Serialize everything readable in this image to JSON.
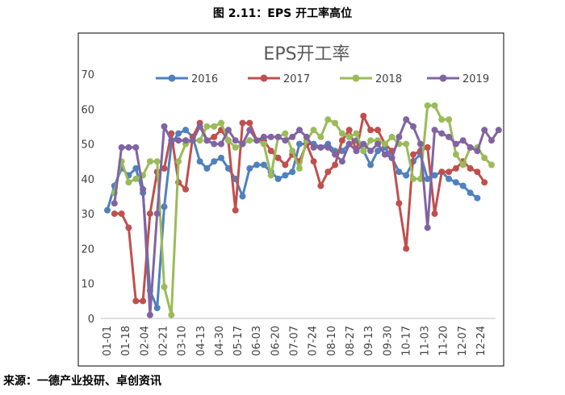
{
  "figure_caption": "图 2.11：EPS 开工率高位",
  "source_note": "来源：一德产业投研、卓创资讯",
  "chart_data": {
    "type": "line",
    "title": "EPS开工率",
    "xlabel": "",
    "ylabel": "",
    "ylim": [
      0,
      70
    ],
    "y_ticks": [
      0,
      10,
      20,
      30,
      40,
      50,
      60,
      70
    ],
    "grid": false,
    "legend_position": "top",
    "x_tick_labels": [
      "01-01",
      "01-18",
      "02-04",
      "02-21",
      "03-10",
      "04-13",
      "04-30",
      "05-17",
      "06-03",
      "06-20",
      "07-07",
      "07-24",
      "08-10",
      "08-27",
      "09-13",
      "09-30",
      "10-17",
      "11-03",
      "11-20",
      "12-07",
      "12-24"
    ],
    "series": [
      {
        "name": "2016",
        "color": "#4F81BD",
        "x_start": 0,
        "values": [
          31,
          38,
          43,
          41,
          43,
          36,
          8,
          3,
          32,
          50,
          53,
          54,
          52,
          45,
          43,
          45,
          46,
          43,
          40,
          35,
          43,
          44,
          44,
          42,
          40,
          41,
          42,
          50,
          50,
          50,
          49,
          50,
          48,
          48,
          50,
          51,
          48,
          44,
          48,
          49,
          46,
          42,
          41,
          45,
          47,
          40,
          41,
          42,
          40,
          39,
          38,
          36,
          34.5
        ]
      },
      {
        "name": "2017",
        "color": "#C0504D",
        "x_start": 1,
        "values": [
          30,
          30,
          26,
          5,
          5,
          30,
          42,
          43,
          53,
          39,
          37,
          52,
          56,
          51,
          52,
          54,
          51,
          31,
          56,
          56,
          51,
          51,
          48,
          46,
          44,
          47,
          45,
          50,
          45,
          38,
          42,
          44,
          51,
          54,
          48,
          58,
          54,
          54,
          50,
          48,
          33,
          20,
          47,
          48,
          49,
          30,
          42,
          42,
          43,
          45,
          43,
          42,
          39
        ]
      },
      {
        "name": "2018",
        "color": "#9BBB59",
        "x_start": 1,
        "values": [
          36,
          45,
          39,
          40,
          41,
          45,
          45,
          9,
          1,
          45,
          50,
          51,
          51,
          55,
          55,
          56,
          51,
          49,
          50,
          51,
          51,
          50,
          41,
          52,
          53,
          48,
          43,
          51,
          54,
          52,
          57,
          56,
          53,
          52,
          53,
          48,
          51,
          51,
          50,
          52,
          50,
          50,
          40,
          40,
          61,
          61,
          57,
          57,
          47,
          44,
          49,
          49,
          46,
          44
        ]
      },
      {
        "name": "2019",
        "color": "#8064A2",
        "x_start": 1,
        "values": [
          33,
          49,
          49,
          49,
          37,
          1,
          30,
          55,
          51,
          51,
          51,
          51,
          55,
          51,
          50,
          50,
          54,
          51,
          50,
          54,
          51,
          52,
          52,
          52,
          51,
          52,
          54,
          52,
          49,
          49,
          49,
          47,
          45,
          50,
          48,
          50,
          48,
          50,
          47,
          46,
          52,
          57,
          55,
          50,
          26,
          54,
          53,
          52,
          50,
          51,
          49,
          48,
          54,
          51,
          54
        ]
      }
    ]
  }
}
